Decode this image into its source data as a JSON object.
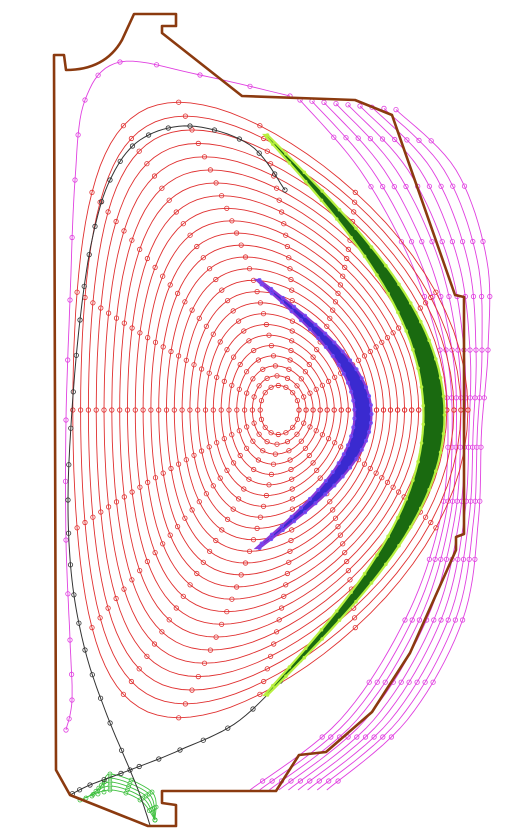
{
  "figure": {
    "description_free": true,
    "colors": {
      "wall": "#8b3a0f",
      "closed_flux_surfaces": "#e03030",
      "separatrix": "#333333",
      "scrape_off_layer": "#e040e0",
      "private_flux": "#40c040",
      "inner_crescent_fill": "#3a2ad0",
      "inner_crescent_edge": "#8a3ad8",
      "outer_crescent_fill": "#1a6a10",
      "outer_crescent_edge": "#b8f040"
    },
    "icons": [
      "marker-circle"
    ]
  }
}
